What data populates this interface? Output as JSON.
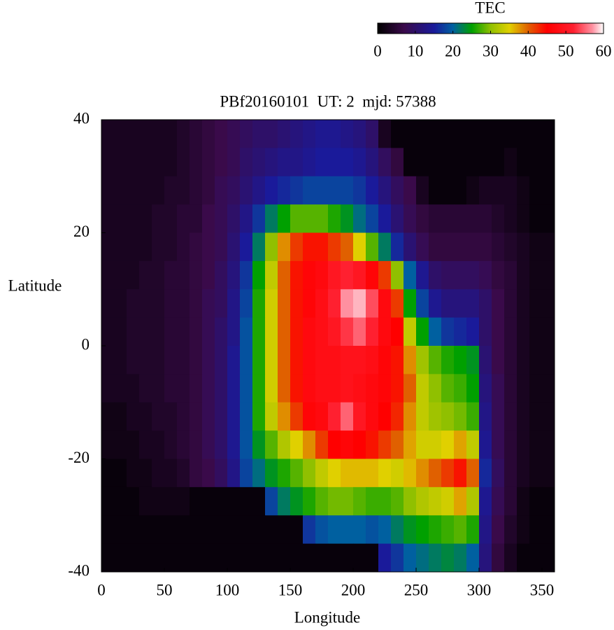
{
  "chart_data": {
    "type": "heatmap",
    "title": "PBf20160101  UT: 2  mjd: 57388",
    "xlabel": "Longitude",
    "ylabel": "Latitude",
    "colorbar_title": "TEC",
    "x": [
      5,
      15,
      25,
      35,
      45,
      55,
      65,
      75,
      85,
      95,
      105,
      115,
      125,
      135,
      145,
      155,
      165,
      175,
      185,
      195,
      205,
      215,
      225,
      235,
      245,
      255,
      265,
      275,
      285,
      295,
      305,
      315,
      325,
      335,
      345,
      355
    ],
    "y": [
      37.5,
      32.5,
      27.5,
      22.5,
      17.5,
      12.5,
      7.5,
      2.5,
      -2.5,
      -7.5,
      -12.5,
      -17.5,
      -22.5,
      -27.5,
      -32.5,
      -37.5
    ],
    "z": [
      [
        3,
        3,
        3,
        3,
        3,
        3,
        4,
        5,
        6,
        7,
        8,
        9,
        10,
        10,
        11,
        12,
        13,
        14,
        14,
        13,
        12,
        10,
        3,
        1,
        1,
        1,
        1,
        1,
        1,
        1,
        1,
        1,
        1,
        1,
        1,
        1
      ],
      [
        3,
        3,
        3,
        3,
        3,
        3,
        4,
        5,
        6,
        7,
        8,
        10,
        11,
        12,
        13,
        13,
        14,
        15,
        15,
        15,
        14,
        12,
        9,
        6,
        1,
        1,
        1,
        1,
        1,
        1,
        1,
        1,
        2,
        1,
        1,
        1
      ],
      [
        3,
        3,
        3,
        3,
        3,
        4,
        4,
        5,
        6,
        8,
        9,
        11,
        13,
        15,
        16,
        17,
        18,
        18,
        18,
        18,
        17,
        15,
        12,
        9,
        7,
        3,
        1,
        1,
        1,
        2,
        3,
        3,
        3,
        2,
        1,
        1
      ],
      [
        3,
        3,
        3,
        3,
        4,
        4,
        5,
        5,
        7,
        8,
        10,
        13,
        17,
        22,
        25,
        28,
        28,
        28,
        26,
        24,
        21,
        18,
        15,
        11,
        8,
        6,
        5,
        5,
        5,
        5,
        5,
        4,
        3,
        2,
        1,
        1
      ],
      [
        3,
        3,
        3,
        3,
        4,
        4,
        5,
        6,
        7,
        8,
        11,
        15,
        22,
        30,
        38,
        42,
        44,
        44,
        42,
        40,
        35,
        28,
        22,
        16,
        11,
        8,
        6,
        6,
        6,
        6,
        6,
        5,
        4,
        3,
        2,
        2
      ],
      [
        3,
        3,
        3,
        4,
        4,
        5,
        5,
        6,
        7,
        9,
        12,
        17,
        25,
        33,
        40,
        44,
        46,
        47,
        50,
        52,
        50,
        46,
        42,
        30,
        20,
        14,
        10,
        9,
        9,
        9,
        8,
        6,
        5,
        3,
        2,
        2
      ],
      [
        3,
        3,
        4,
        4,
        4,
        5,
        5,
        6,
        8,
        9,
        13,
        18,
        26,
        34,
        40,
        44,
        46,
        48,
        52,
        57,
        58,
        54,
        47,
        42,
        25,
        18,
        14,
        12,
        12,
        12,
        10,
        7,
        5,
        3,
        2,
        2
      ],
      [
        3,
        3,
        4,
        4,
        4,
        5,
        5,
        6,
        8,
        10,
        13,
        19,
        26,
        34,
        40,
        44,
        47,
        48,
        50,
        53,
        55,
        52,
        47,
        45,
        33,
        25,
        20,
        17,
        16,
        15,
        10,
        7,
        5,
        3,
        2,
        2
      ],
      [
        3,
        3,
        4,
        4,
        4,
        5,
        5,
        6,
        8,
        10,
        14,
        19,
        26,
        34,
        40,
        44,
        47,
        48,
        48,
        49,
        49,
        48,
        46,
        44,
        38,
        31,
        28,
        26,
        25,
        24,
        11,
        7,
        5,
        3,
        2,
        2
      ],
      [
        3,
        3,
        3,
        4,
        4,
        5,
        5,
        6,
        8,
        10,
        14,
        19,
        26,
        34,
        40,
        44,
        47,
        48,
        48,
        49,
        48,
        47,
        46,
        44,
        40,
        33,
        30,
        28,
        27,
        25,
        12,
        8,
        5,
        3,
        2,
        2
      ],
      [
        2,
        2,
        3,
        3,
        4,
        4,
        5,
        6,
        8,
        10,
        14,
        19,
        26,
        33,
        38,
        42,
        46,
        47,
        52,
        55,
        50,
        47,
        45,
        43,
        38,
        33,
        31,
        30,
        29,
        27,
        13,
        8,
        5,
        3,
        2,
        2
      ],
      [
        2,
        2,
        2,
        3,
        3,
        4,
        5,
        6,
        8,
        10,
        14,
        19,
        24,
        28,
        32,
        35,
        38,
        42,
        45,
        46,
        45,
        44,
        42,
        40,
        37,
        34,
        34,
        35,
        37,
        33,
        14,
        8,
        5,
        3,
        2,
        2
      ],
      [
        1,
        1,
        2,
        2,
        3,
        3,
        4,
        6,
        7,
        9,
        13,
        18,
        21,
        24,
        26,
        28,
        30,
        33,
        35,
        36,
        36,
        36,
        35,
        34,
        36,
        38,
        40,
        42,
        44,
        40,
        16,
        9,
        5,
        3,
        2,
        2
      ],
      [
        1,
        1,
        1,
        2,
        2,
        2,
        2,
        1,
        1,
        1,
        1,
        1,
        1,
        18,
        22,
        24,
        26,
        28,
        29,
        29,
        28,
        27,
        27,
        28,
        30,
        32,
        33,
        34,
        37,
        32,
        14,
        8,
        5,
        2,
        1,
        1
      ],
      [
        1,
        1,
        1,
        1,
        1,
        1,
        1,
        1,
        1,
        1,
        1,
        1,
        1,
        1,
        1,
        1,
        17,
        19,
        20,
        20,
        20,
        19,
        20,
        22,
        24,
        25,
        26,
        27,
        28,
        26,
        13,
        7,
        4,
        2,
        1,
        1
      ],
      [
        1,
        1,
        1,
        1,
        1,
        1,
        1,
        1,
        1,
        1,
        1,
        1,
        1,
        1,
        1,
        1,
        1,
        1,
        1,
        1,
        1,
        1,
        15,
        17,
        20,
        21,
        22,
        23,
        22,
        20,
        12,
        6,
        3,
        1,
        1,
        1
      ]
    ],
    "xlim": [
      0,
      360
    ],
    "xticks": [
      0,
      50,
      100,
      150,
      200,
      250,
      300,
      350
    ],
    "ylim": [
      -40,
      40
    ],
    "yticks": [
      -40,
      -20,
      0,
      20,
      40
    ],
    "zlim": [
      0,
      60
    ],
    "zticks": [
      0,
      10,
      20,
      30,
      40,
      50,
      60
    ],
    "colorscale": [
      [
        0,
        "#000000"
      ],
      [
        7,
        "#3a0a4a"
      ],
      [
        15,
        "#1a1a9a"
      ],
      [
        20,
        "#0060a0"
      ],
      [
        25,
        "#00a000"
      ],
      [
        30,
        "#90c000"
      ],
      [
        35,
        "#e0d000"
      ],
      [
        40,
        "#e06000"
      ],
      [
        45,
        "#ff0000"
      ],
      [
        52,
        "#ff2030"
      ],
      [
        57,
        "#ff90a0"
      ],
      [
        60,
        "#ffffff"
      ]
    ]
  }
}
